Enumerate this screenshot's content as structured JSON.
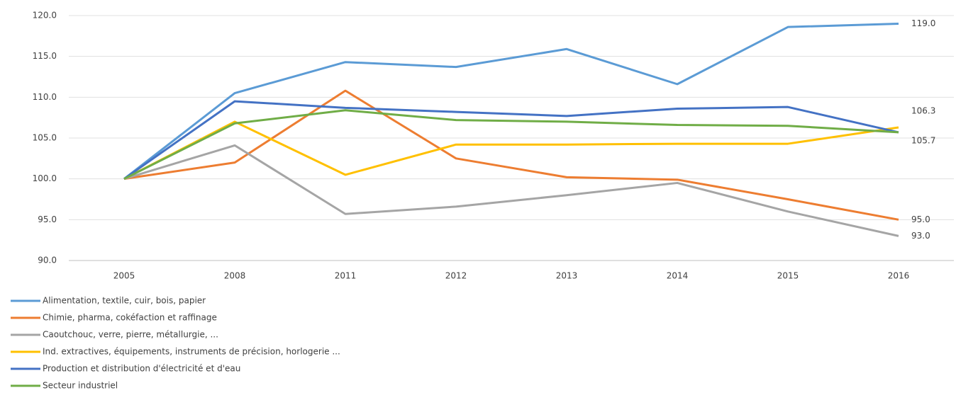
{
  "chart_data": {
    "type": "line",
    "categories": [
      "2005",
      "2008",
      "2011",
      "2012",
      "2013",
      "2014",
      "2015",
      "2016"
    ],
    "ylim": [
      90,
      120
    ],
    "yticks": [
      {
        "value": 90,
        "label": "90.0"
      },
      {
        "value": 95,
        "label": "95.0"
      },
      {
        "value": 100,
        "label": "100.0"
      },
      {
        "value": 105,
        "label": "105.0"
      },
      {
        "value": 110,
        "label": "110.0"
      },
      {
        "value": 115,
        "label": "115.0"
      },
      {
        "value": 120,
        "label": "120.0"
      }
    ],
    "grid": true,
    "legend": "bottom-left",
    "series": [
      {
        "name": "Alimentation, textile, cuir, bois, papier",
        "color": "#5b9bd5",
        "values": [
          100,
          110.5,
          114.3,
          113.7,
          115.9,
          111.6,
          118.6,
          119.0
        ],
        "value_labels": [
          null,
          null,
          null,
          null,
          null,
          null,
          null,
          "119.0"
        ]
      },
      {
        "name": "Chimie, pharma, cokéfaction et raffinage",
        "color": "#ed7d31",
        "values": [
          100,
          102.0,
          110.8,
          102.5,
          100.2,
          99.9,
          97.5,
          95.0
        ],
        "value_labels": [
          null,
          null,
          null,
          null,
          null,
          null,
          null,
          "95.0"
        ]
      },
      {
        "name": "Caoutchouc, verre, pierre, métallurgie, ...",
        "color": "#a5a5a5",
        "values": [
          100,
          104.1,
          95.7,
          96.6,
          98.0,
          99.5,
          96.0,
          93.0
        ],
        "value_labels": [
          null,
          null,
          null,
          null,
          null,
          null,
          null,
          "93.0"
        ]
      },
      {
        "name": "Ind. extractives,  équipements,  instruments de précision, horlogerie ...",
        "color": "#ffc000",
        "values": [
          100,
          107.0,
          100.5,
          104.2,
          104.2,
          104.3,
          104.3,
          106.3
        ],
        "value_labels": [
          null,
          null,
          null,
          null,
          null,
          null,
          null,
          "106.3"
        ]
      },
      {
        "name": "Production et distribution d'électricité et d'eau",
        "color": "#4472c4",
        "values": [
          100,
          109.5,
          108.7,
          108.2,
          107.7,
          108.6,
          108.8,
          105.7
        ]
      },
      {
        "name": "Secteur industriel",
        "color": "#70ad47",
        "values": [
          100,
          106.8,
          108.4,
          107.2,
          107.0,
          106.6,
          106.5,
          105.7
        ],
        "value_labels": [
          null,
          null,
          null,
          null,
          null,
          null,
          null,
          "105.7"
        ]
      }
    ]
  }
}
